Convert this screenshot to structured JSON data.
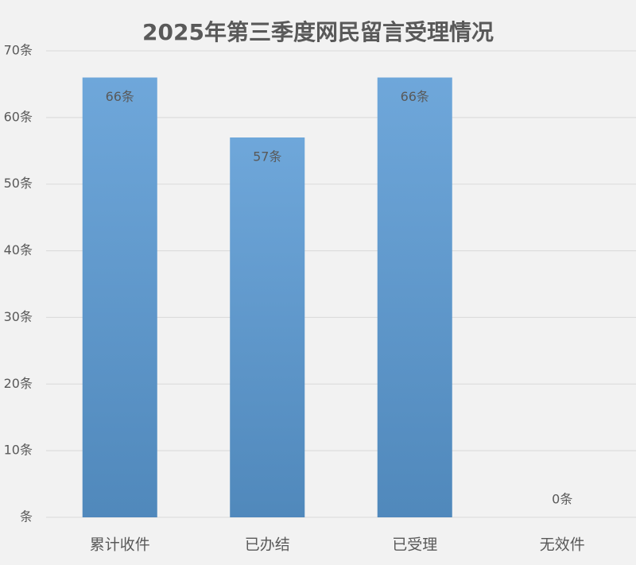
{
  "chart_data": {
    "type": "bar",
    "title": "2025年第三季度网民留言受理情况",
    "categories": [
      "累计收件",
      "已办结",
      "已受理",
      "无效件"
    ],
    "values": [
      66,
      57,
      66,
      0
    ],
    "value_labels": [
      "66条",
      "57条",
      "66条",
      "0条"
    ],
    "color": "#5b9bd5",
    "ylim": [
      0,
      70
    ],
    "yticks": [
      {
        "value": 0,
        "label": "条"
      },
      {
        "value": 10,
        "label": "10条"
      },
      {
        "value": 20,
        "label": "20条"
      },
      {
        "value": 30,
        "label": "30条"
      },
      {
        "value": 40,
        "label": "40条"
      },
      {
        "value": 50,
        "label": "50条"
      },
      {
        "value": 60,
        "label": "60条"
      },
      {
        "value": 70,
        "label": "70条"
      }
    ],
    "grid": true
  }
}
